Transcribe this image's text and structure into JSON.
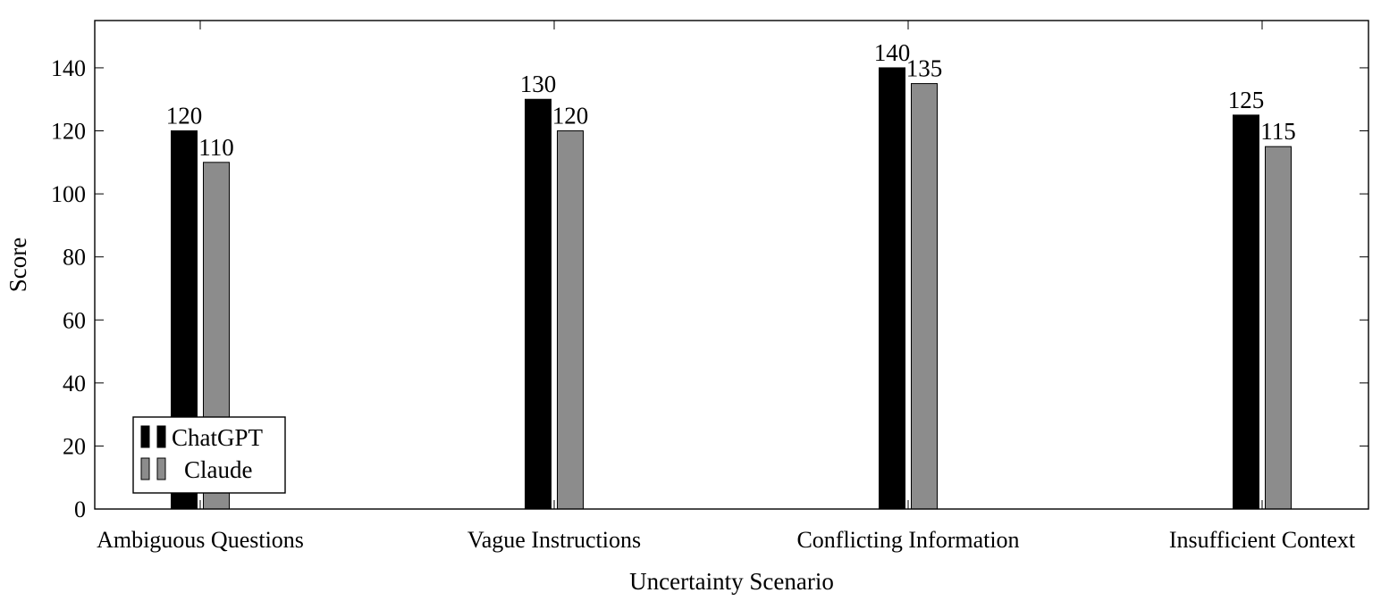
{
  "chart_data": {
    "type": "bar",
    "title": "",
    "xlabel": "Uncertainty Scenario",
    "ylabel": "Score",
    "categories": [
      "Ambiguous Questions",
      "Vague Instructions",
      "Conflicting Information",
      "Insufficient Context"
    ],
    "series": [
      {
        "name": "ChatGPT",
        "values": [
          120,
          130,
          140,
          125
        ],
        "color": "#000000"
      },
      {
        "name": "Claude",
        "values": [
          110,
          120,
          135,
          115
        ],
        "color": "#8c8c8c"
      }
    ],
    "ylim": [
      0,
      155
    ],
    "yticks": [
      0,
      20,
      40,
      60,
      80,
      100,
      120,
      140
    ],
    "data_labels": true,
    "grid": false,
    "legend_position": "bottom-left"
  }
}
